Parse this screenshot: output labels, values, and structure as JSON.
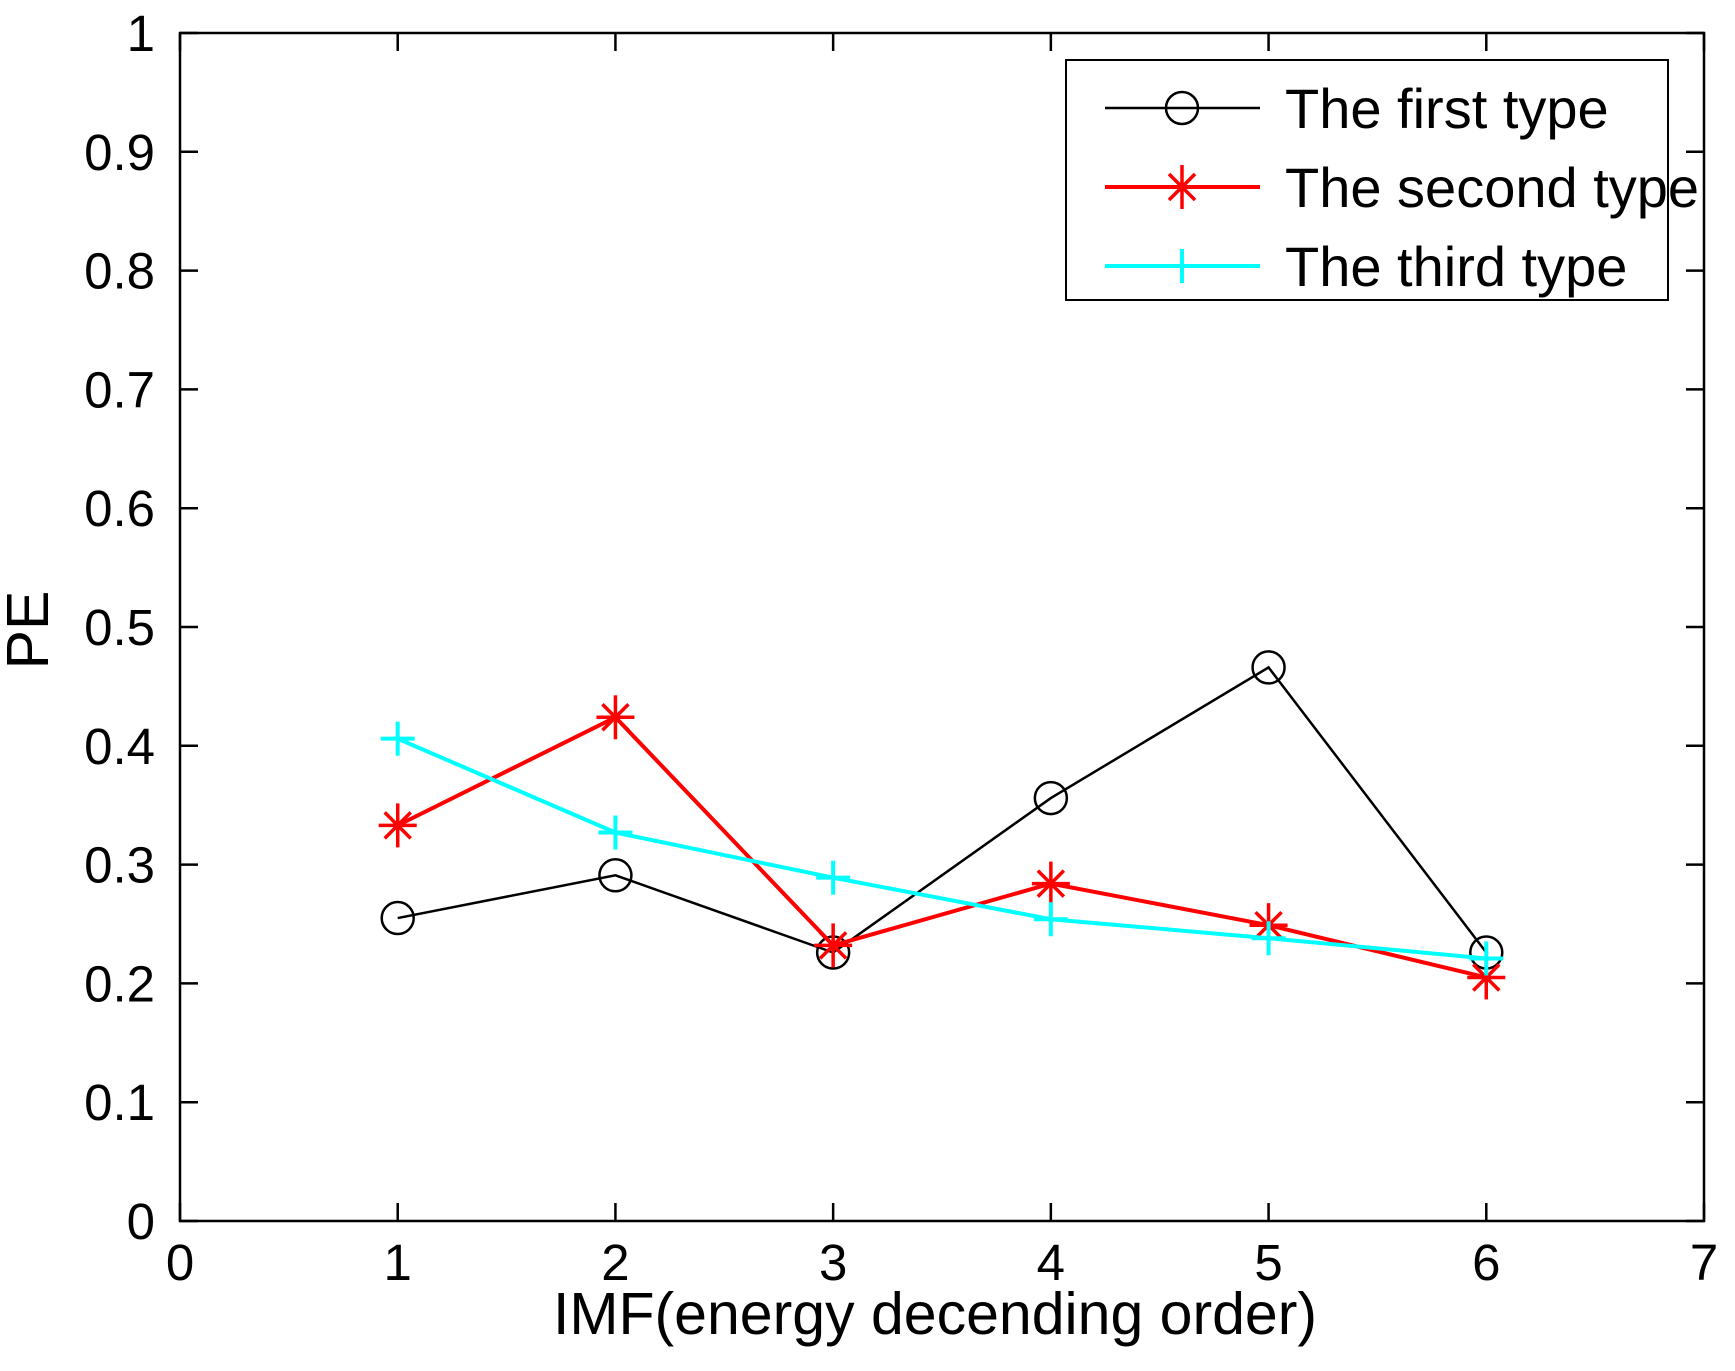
{
  "figure": {
    "background": "#ffffff",
    "axis_color": "#000000"
  },
  "chart_data": {
    "type": "line",
    "title": "",
    "xlabel": "IMF(energy decending order)",
    "ylabel": "PE",
    "xlim": [
      0,
      7
    ],
    "ylim": [
      0,
      1
    ],
    "x_tick_labels": [
      "0",
      "1",
      "2",
      "3",
      "4",
      "5",
      "6",
      "7"
    ],
    "x_tick_values": [
      0,
      1,
      2,
      3,
      4,
      5,
      6,
      7
    ],
    "y_tick_labels": [
      "0",
      "0.1",
      "0.2",
      "0.3",
      "0.4",
      "0.5",
      "0.6",
      "0.7",
      "0.8",
      "0.9",
      "1"
    ],
    "y_tick_values": [
      0,
      0.1,
      0.2,
      0.3,
      0.4,
      0.5,
      0.6,
      0.7,
      0.8,
      0.9,
      1
    ],
    "grid": false,
    "legend_position": "top-right",
    "x": [
      1,
      2,
      3,
      4,
      5,
      6
    ],
    "series": [
      {
        "name": "The first type",
        "color": "#000000",
        "marker": "circle",
        "line_width": 2.5,
        "values": [
          0.255,
          0.291,
          0.226,
          0.356,
          0.466,
          0.226
        ]
      },
      {
        "name": "The second type",
        "color": "#ff0000",
        "marker": "asterisk",
        "line_width": 4,
        "values": [
          0.333,
          0.424,
          0.232,
          0.284,
          0.249,
          0.205
        ]
      },
      {
        "name": "The third type",
        "color": "#00ffff",
        "marker": "plus",
        "line_width": 4,
        "values": [
          0.406,
          0.327,
          0.289,
          0.254,
          0.238,
          0.221
        ]
      }
    ]
  }
}
